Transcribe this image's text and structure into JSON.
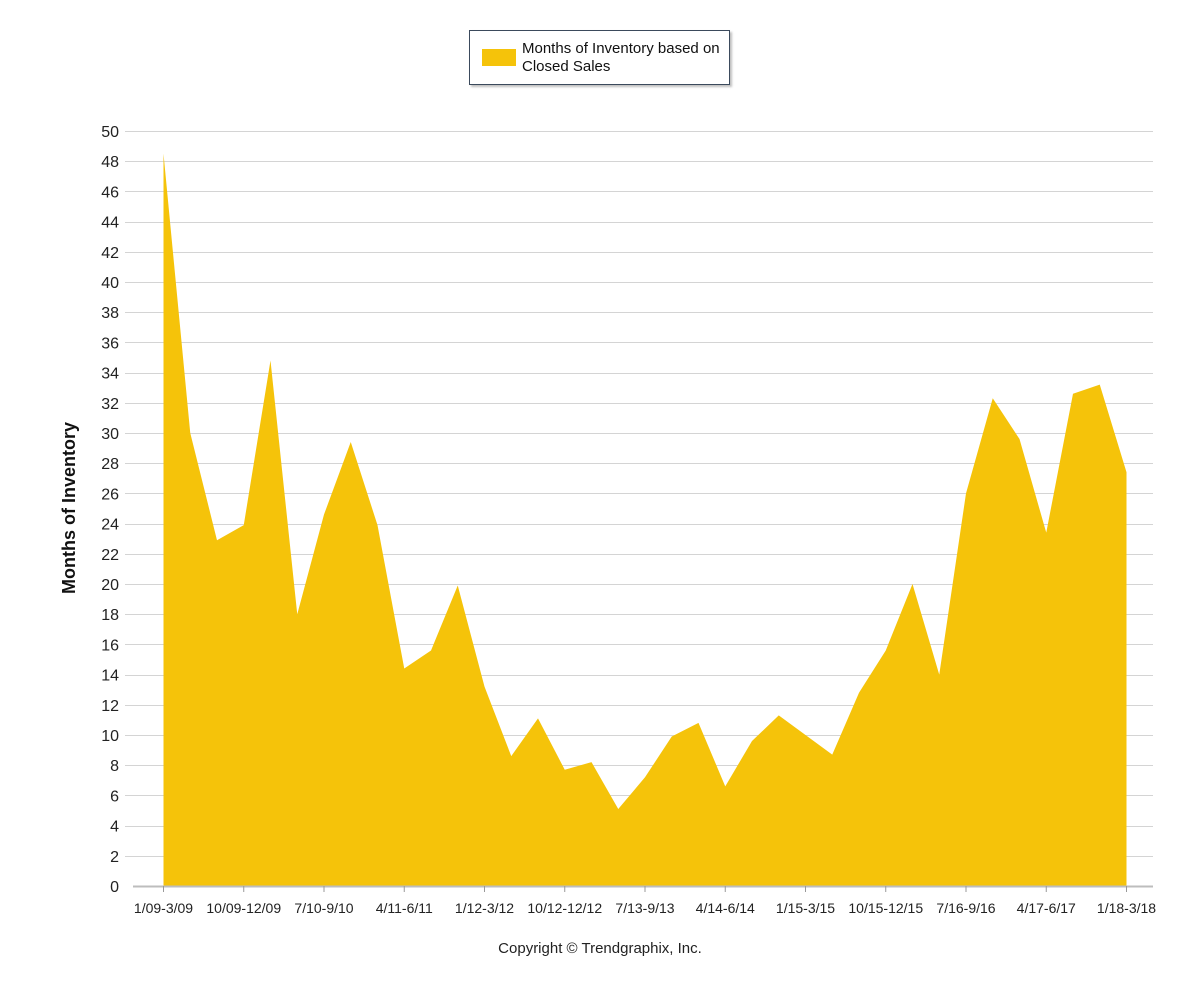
{
  "chart_data": {
    "type": "area",
    "title": "",
    "ylabel": "Months of Inventory",
    "xlabel": "",
    "ylim": [
      0,
      50
    ],
    "y_ticks": [
      0,
      2,
      4,
      6,
      8,
      10,
      12,
      14,
      16,
      18,
      20,
      22,
      24,
      26,
      28,
      30,
      32,
      34,
      36,
      38,
      40,
      42,
      44,
      46,
      48,
      50
    ],
    "grid": true,
    "legend": "top-center",
    "categories": [
      "1/09-3/09",
      "",
      "",
      "10/09-12/09",
      "",
      "",
      "7/10-9/10",
      "",
      "",
      "4/11-6/11",
      "",
      "",
      "1/12-3/12",
      "",
      "",
      "10/12-12/12",
      "",
      "",
      "7/13-9/13",
      "",
      "",
      "4/14-6/14",
      "",
      "",
      "1/15-3/15",
      "",
      "",
      "10/15-12/15",
      "",
      "",
      "7/16-9/16",
      "",
      "",
      "4/17-6/17",
      "",
      "",
      "1/18-3/18"
    ],
    "series": [
      {
        "name": "Months of Inventory based on Closed Sales",
        "color": "#F5C30A",
        "values": [
          48.5,
          30.0,
          22.9,
          23.9,
          34.8,
          18.0,
          24.6,
          29.4,
          23.9,
          14.4,
          15.6,
          19.9,
          13.2,
          8.6,
          11.1,
          7.7,
          8.2,
          5.1,
          7.2,
          9.9,
          10.8,
          6.6,
          9.6,
          11.3,
          10.0,
          8.7,
          12.8,
          15.6,
          20.0,
          14.0,
          26.0,
          32.3,
          29.6,
          23.4,
          32.6,
          33.2,
          27.4
        ]
      }
    ]
  },
  "copyright": "Copyright © Trendgraphix, Inc."
}
